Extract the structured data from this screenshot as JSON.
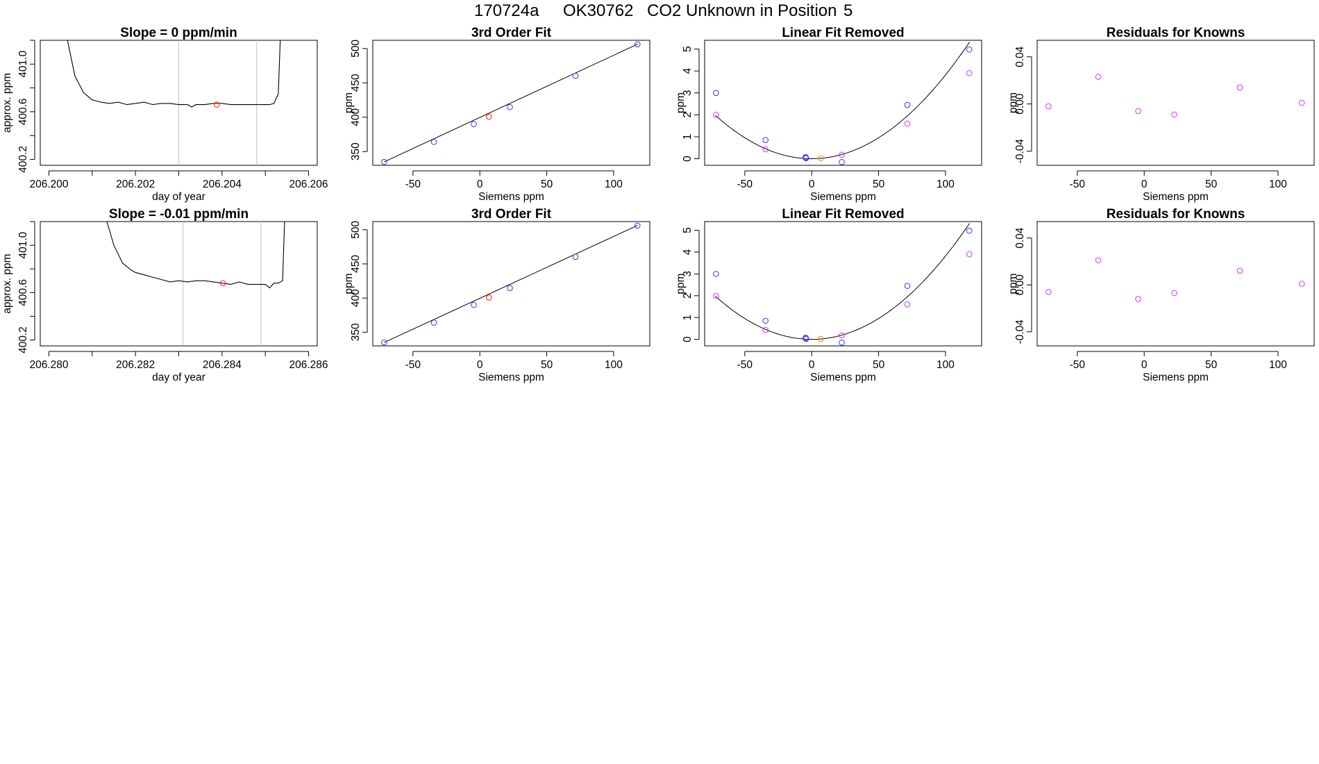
{
  "header": {
    "run_id": "170724a",
    "tank_id": "OK30762",
    "description": "CO2 Unknown in Position",
    "position": "5"
  },
  "colors": {
    "line": "#000000",
    "blue_point": "#3333ff",
    "red_point": "#ff2200",
    "orange_point": "#ff8800",
    "magenta_point": "#cc33ff",
    "vline": "#c0c0c0"
  },
  "chart_data": [
    {
      "id": "trace-row1",
      "type": "line",
      "title": "Slope =  0  ppm/min",
      "xlabel": "day of year",
      "ylabel": "approx. ppm",
      "xlim": [
        206.1998,
        206.2062
      ],
      "ylim": [
        400.15,
        401.2
      ],
      "xticks": [
        206.2,
        206.201,
        206.202,
        206.203,
        206.204,
        206.205,
        206.206
      ],
      "xtick_labels": [
        "206.200",
        "",
        "206.202",
        "",
        "206.204",
        "",
        "206.206"
      ],
      "yticks": [
        400.2,
        400.4,
        400.6,
        400.8,
        401.0,
        401.2
      ],
      "ytick_labels": [
        "400.2",
        "",
        "400.6",
        "",
        "401.0",
        ""
      ],
      "vlines": [
        206.203,
        206.2048
      ],
      "marker": {
        "x": 206.20388,
        "y": 400.66
      },
      "x": [
        206.2004,
        206.2006,
        206.2008,
        206.201,
        206.2011,
        206.2012,
        206.2014,
        206.2016,
        206.2018,
        206.202,
        206.2022,
        206.2024,
        206.2026,
        206.2028,
        206.203,
        206.2032,
        206.2033,
        206.2034,
        206.2036,
        206.2038,
        206.204,
        206.2042,
        206.2044,
        206.2046,
        206.2048,
        206.205,
        206.2051,
        206.2052,
        206.2053,
        206.20535
      ],
      "y": [
        401.25,
        400.9,
        400.76,
        400.7,
        400.69,
        400.68,
        400.67,
        400.68,
        400.66,
        400.67,
        400.68,
        400.66,
        400.67,
        400.67,
        400.66,
        400.66,
        400.64,
        400.66,
        400.66,
        400.67,
        400.67,
        400.66,
        400.66,
        400.66,
        400.66,
        400.66,
        400.66,
        400.67,
        400.75,
        401.25
      ]
    },
    {
      "id": "fit-row1",
      "type": "scatter",
      "title": "3rd Order Fit",
      "xlabel": "Siemens ppm",
      "ylabel": "ppm",
      "xlim": [
        -80,
        127
      ],
      "ylim": [
        330,
        512
      ],
      "xticks": [
        -50,
        0,
        50,
        100
      ],
      "xtick_labels": [
        "-50",
        "0",
        "50",
        "100"
      ],
      "yticks": [
        350,
        400,
        450,
        500
      ],
      "ytick_labels": [
        "350",
        "400",
        "450",
        "500"
      ],
      "curve": {
        "x": [
          -71.5,
          118
        ],
        "y": [
          335,
          506.5
        ]
      },
      "points_blue": {
        "x": [
          -71.5,
          -34.3,
          -4.5,
          22.5,
          71.5,
          117.8
        ],
        "y": [
          335,
          364,
          390,
          414.7,
          460.3,
          506
        ]
      },
      "points_red": {
        "x": [
          6.8
        ],
        "y": [
          400.7
        ]
      }
    },
    {
      "id": "linfit-row1",
      "type": "scatter",
      "title": "Linear Fit Removed",
      "xlabel": "Siemens ppm",
      "ylabel": "ppm",
      "xlim": [
        -80,
        127
      ],
      "ylim": [
        -0.3,
        5.4
      ],
      "xticks": [
        -50,
        0,
        50,
        100
      ],
      "xtick_labels": [
        "-50",
        "0",
        "50",
        "100"
      ],
      "yticks": [
        0,
        1,
        2,
        3,
        4,
        5
      ],
      "ytick_labels": [
        "0",
        "1",
        "2",
        "3",
        "4",
        "5"
      ],
      "quadratic": {
        "a": 0.000382,
        "b": 0.0,
        "c": 0.0,
        "xmin": -72,
        "xmax": 118
      },
      "points_blue": {
        "x": [
          -71.5,
          -34.5,
          -4.5,
          -4.2,
          22.5,
          71.5,
          117.8
        ],
        "y": [
          3.0,
          0.85,
          0.05,
          0.02,
          -0.15,
          2.45,
          4.98
        ]
      },
      "points_magenta": {
        "x": [
          -71.5,
          -34.5,
          -4.5,
          22.5,
          71.5,
          117.8
        ],
        "y": [
          2.0,
          0.43,
          0.08,
          0.18,
          1.6,
          3.9
        ]
      },
      "points_orange": {
        "x": [
          6.8
        ],
        "y": [
          0.02
        ]
      }
    },
    {
      "id": "resid-row1",
      "type": "scatter",
      "title": "Residuals for Knowns",
      "xlabel": "Siemens ppm",
      "ylabel": "ppm",
      "xlim": [
        -80,
        127
      ],
      "ylim": [
        -0.052,
        0.054
      ],
      "xticks": [
        -50,
        0,
        50,
        100
      ],
      "xtick_labels": [
        "-50",
        "0",
        "50",
        "100"
      ],
      "yticks": [
        -0.04,
        0.0,
        0.04
      ],
      "ytick_labels": [
        "-0.04",
        "0.00",
        "0.04"
      ],
      "points_magenta": {
        "x": [
          -71.5,
          -34.3,
          -4.5,
          22.5,
          71.5,
          117.8
        ],
        "y": [
          -0.002,
          0.023,
          -0.006,
          -0.009,
          0.014,
          0.001
        ]
      }
    },
    {
      "id": "trace-row2",
      "type": "line",
      "title": "Slope =  -0.01  ppm/min",
      "xlabel": "day of year",
      "ylabel": "approx. ppm",
      "xlim": [
        206.2798,
        206.2862
      ],
      "ylim": [
        400.15,
        401.2
      ],
      "xticks": [
        206.28,
        206.281,
        206.282,
        206.283,
        206.284,
        206.285,
        206.286
      ],
      "xtick_labels": [
        "206.280",
        "",
        "206.282",
        "",
        "206.284",
        "",
        "206.286"
      ],
      "yticks": [
        400.2,
        400.4,
        400.6,
        400.8,
        401.0,
        401.2
      ],
      "ytick_labels": [
        "400.2",
        "",
        "400.6",
        "",
        "401.0",
        ""
      ],
      "vlines": [
        206.2831,
        206.2849
      ],
      "marker": {
        "x": 206.28402,
        "y": 400.68
      },
      "x": [
        206.2813,
        206.2815,
        206.2817,
        206.2819,
        206.282,
        206.2822,
        206.2824,
        206.2826,
        206.2828,
        206.283,
        206.2832,
        206.2834,
        206.2836,
        206.2838,
        206.284,
        206.2842,
        206.2844,
        206.2846,
        206.2848,
        206.285,
        206.2851,
        206.2852,
        206.2853,
        206.2854,
        206.28545
      ],
      "y": [
        401.25,
        401.0,
        400.85,
        400.79,
        400.77,
        400.75,
        400.73,
        400.71,
        400.69,
        400.7,
        400.69,
        400.7,
        400.7,
        400.69,
        400.68,
        400.67,
        400.69,
        400.67,
        400.67,
        400.67,
        400.64,
        400.68,
        400.68,
        400.7,
        401.25
      ]
    },
    {
      "id": "fit-row2",
      "type": "scatter",
      "title": "3rd Order Fit",
      "xlabel": "Siemens ppm",
      "ylabel": "ppm",
      "xlim": [
        -80,
        127
      ],
      "ylim": [
        330,
        512
      ],
      "xticks": [
        -50,
        0,
        50,
        100
      ],
      "xtick_labels": [
        "-50",
        "0",
        "50",
        "100"
      ],
      "yticks": [
        350,
        400,
        450,
        500
      ],
      "ytick_labels": [
        "350",
        "400",
        "450",
        "500"
      ],
      "curve": {
        "x": [
          -71.5,
          118
        ],
        "y": [
          335,
          506.5
        ]
      },
      "points_blue": {
        "x": [
          -71.5,
          -34.3,
          -4.5,
          22.5,
          71.5,
          117.8
        ],
        "y": [
          335,
          364,
          390,
          414.7,
          460.3,
          506
        ]
      },
      "points_red": {
        "x": [
          6.8
        ],
        "y": [
          400.7
        ]
      }
    },
    {
      "id": "linfit-row2",
      "type": "scatter",
      "title": "Linear Fit Removed",
      "xlabel": "Siemens ppm",
      "ylabel": "ppm",
      "xlim": [
        -80,
        127
      ],
      "ylim": [
        -0.3,
        5.4
      ],
      "xticks": [
        -50,
        0,
        50,
        100
      ],
      "xtick_labels": [
        "-50",
        "0",
        "50",
        "100"
      ],
      "yticks": [
        0,
        1,
        2,
        3,
        4,
        5
      ],
      "ytick_labels": [
        "0",
        "1",
        "2",
        "3",
        "4",
        "5"
      ],
      "quadratic": {
        "a": 0.000382,
        "b": 0.0,
        "c": 0.0,
        "xmin": -72,
        "xmax": 118
      },
      "points_blue": {
        "x": [
          -71.5,
          -34.5,
          -4.5,
          -4.2,
          22.5,
          71.5,
          117.8
        ],
        "y": [
          3.0,
          0.85,
          0.05,
          0.02,
          -0.15,
          2.45,
          4.98
        ]
      },
      "points_magenta": {
        "x": [
          -71.5,
          -34.5,
          -4.5,
          22.5,
          71.5,
          117.8
        ],
        "y": [
          2.0,
          0.43,
          0.08,
          0.18,
          1.6,
          3.9
        ]
      },
      "points_orange": {
        "x": [
          6.8
        ],
        "y": [
          0.02
        ]
      }
    },
    {
      "id": "resid-row2",
      "type": "scatter",
      "title": "Residuals for Knowns",
      "xlabel": "Siemens ppm",
      "ylabel": "ppm",
      "xlim": [
        -80,
        127
      ],
      "ylim": [
        -0.052,
        0.054
      ],
      "xticks": [
        -50,
        0,
        50,
        100
      ],
      "xtick_labels": [
        "-50",
        "0",
        "50",
        "100"
      ],
      "yticks": [
        -0.04,
        0.0,
        0.04
      ],
      "ytick_labels": [
        "-0.04",
        "0.00",
        "0.04"
      ],
      "points_magenta": {
        "x": [
          -71.5,
          -34.3,
          -4.5,
          22.5,
          71.5,
          117.8
        ],
        "y": [
          -0.006,
          0.021,
          -0.012,
          -0.007,
          0.012,
          0.001
        ]
      }
    }
  ]
}
